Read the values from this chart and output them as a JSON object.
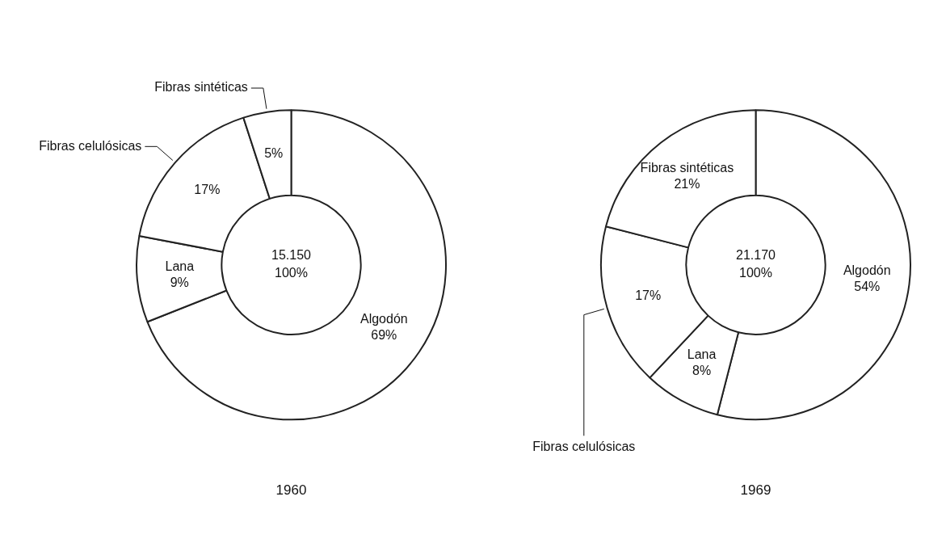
{
  "chart_data": [
    {
      "type": "donut",
      "title": "1960",
      "categories": [
        "Algodón",
        "Lana",
        "Fibras celulósicas",
        "Fibras sintéticas"
      ],
      "values": [
        69,
        9,
        17,
        5
      ],
      "value_labels": [
        "69%",
        "9%",
        "17%",
        "5%"
      ],
      "colors": [
        "#ffffff",
        "#ffffff",
        "#ffffff",
        "#ffffff"
      ],
      "annotations": [
        "15.150",
        "100%"
      ],
      "legend": false
    },
    {
      "type": "donut",
      "title": "1969",
      "categories": [
        "Algodón",
        "Lana",
        "Fibras celulósicas",
        "Fibras sintéticas"
      ],
      "values": [
        54,
        8,
        17,
        21
      ],
      "value_labels": [
        "54%",
        "8%",
        "17%",
        "21%"
      ],
      "colors": [
        "#ffffff",
        "#ffffff",
        "#ffffff",
        "#ffffff"
      ],
      "annotations": [
        "21.170",
        "100%"
      ],
      "legend": false
    }
  ]
}
